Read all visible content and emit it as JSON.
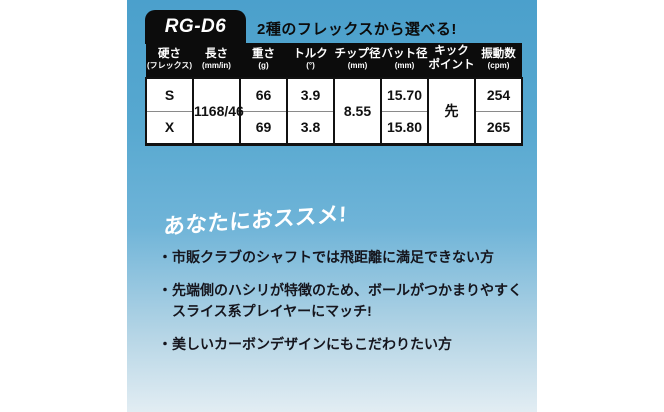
{
  "product": {
    "model": "RG-D6",
    "tagline": "2種のフレックスから選べる!"
  },
  "spec_table": {
    "columns": [
      {
        "label": "硬さ",
        "sub": "(フレックス)"
      },
      {
        "label": "長さ",
        "sub": "(mm/in)"
      },
      {
        "label": "重さ",
        "sub": "(g)"
      },
      {
        "label": "トルク",
        "sub": "(°)"
      },
      {
        "label": "チップ径",
        "sub": "(mm)"
      },
      {
        "label": "バット径",
        "sub": "(mm)"
      },
      {
        "label": "キック",
        "sub": "ポイント"
      },
      {
        "label": "振動数",
        "sub": "(cpm)"
      }
    ],
    "row_s": {
      "flex": "S",
      "weight": "66",
      "torque": "3.9",
      "butt_dia": "15.70",
      "frequency": "254"
    },
    "row_x": {
      "flex": "X",
      "weight": "69",
      "torque": "3.8",
      "butt_dia": "15.80",
      "frequency": "265"
    },
    "shared": {
      "length": "1168/46",
      "tip_dia": "8.55",
      "kick_point": "先"
    }
  },
  "recommend": {
    "title": "あなたにおススメ!",
    "bullet_char": "・",
    "bullets": [
      {
        "line1": "市販クラブのシャフトでは飛距離に満足できない方",
        "line2": ""
      },
      {
        "line1": "先端側のハシリが特徴のため、ボールがつかまりやすく",
        "line2": "スライス系プレイヤーにマッチ!"
      },
      {
        "line1": "美しいカーボンデザインにもこだわりたい方",
        "line2": ""
      }
    ]
  },
  "colors": {
    "panel_top": "#4BA0CC",
    "panel_bottom": "#E2EDF3",
    "table_header_bg": "#0C0C0C",
    "text_dark": "#111111",
    "text_light": "#FFFFFF"
  }
}
